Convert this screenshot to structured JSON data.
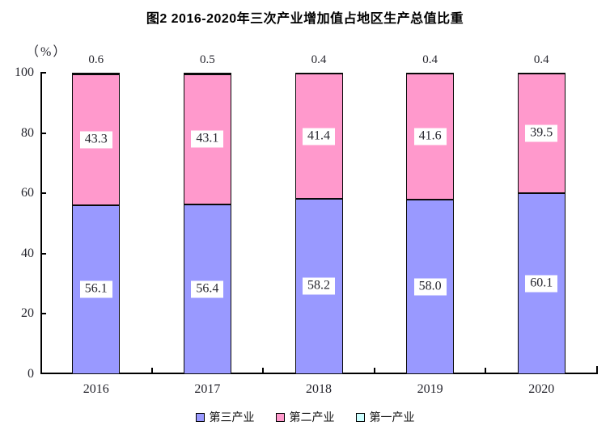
{
  "chart_data": {
    "type": "bar",
    "stacked": true,
    "title": "图2 2016-2020年三次产业增加值占地区生产总值比重",
    "unit_label": "（%）",
    "categories": [
      "2016",
      "2017",
      "2018",
      "2019",
      "2020"
    ],
    "series": [
      {
        "name": "第三产业",
        "color": "#9999FF",
        "values": [
          56.1,
          56.4,
          58.2,
          58.0,
          60.1
        ],
        "label_position": "inside"
      },
      {
        "name": "第二产业",
        "color": "#FF99CC",
        "values": [
          43.3,
          43.1,
          41.4,
          41.6,
          39.5
        ],
        "label_position": "inside"
      },
      {
        "name": "第一产业",
        "color": "#CCFFFF",
        "values": [
          0.6,
          0.5,
          0.4,
          0.4,
          0.4
        ],
        "label_position": "above"
      }
    ],
    "ylim": [
      0,
      100
    ],
    "yticks": [
      0,
      20,
      40,
      60,
      80,
      100
    ],
    "legend_position": "bottom",
    "grid": false,
    "colors": {
      "axis": "#000000",
      "text": "#26262e",
      "title": "#000000",
      "label_box_bg": "#ffffff"
    }
  }
}
